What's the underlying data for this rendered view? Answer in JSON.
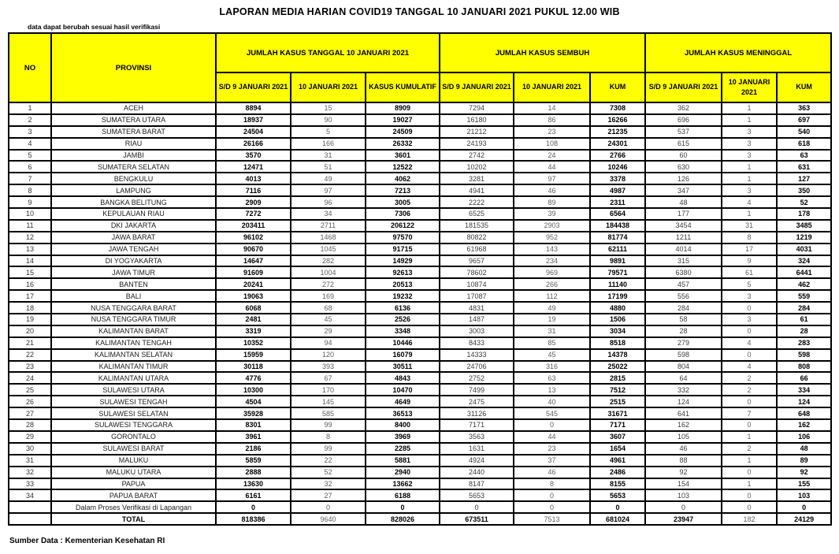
{
  "title": "LAPORAN MEDIA HARIAN COVID19 TANGGAL 10 JANUARI 2021 PUKUL 12.00 WIB",
  "note": "data dapat berubah sesuai hasil verifikasi",
  "source": "Sumber Data : Kementerian Kesehatan RI",
  "colors": {
    "header_bg": "#FFFF00",
    "border": "#000000",
    "muted_value": "#5f5f5f"
  },
  "table": {
    "columns": {
      "no": "NO",
      "province": "PROVINSI",
      "groups": [
        {
          "label": "JUMLAH KASUS TANGGAL 10 JANUARI 2021",
          "sub": [
            "S/D 9 JANUARI 2021",
            "10 JANUARI 2021",
            "KASUS KUMULATIF"
          ]
        },
        {
          "label": "JUMLAH KASUS SEMBUH",
          "sub": [
            "S/D 9 JANUARI 2021",
            "10 JANUARI 2021",
            "KUM"
          ]
        },
        {
          "label": "JUMLAH KASUS MENINGGAL",
          "sub": [
            "S/D 9 JANUARI 2021",
            "10 JANUARI 2021",
            "KUM"
          ]
        }
      ]
    },
    "rows": [
      {
        "no": "1",
        "province": "ACEH",
        "values": [
          "8894",
          "15",
          "8909",
          "7294",
          "14",
          "7308",
          "362",
          "1",
          "363"
        ]
      },
      {
        "no": "2",
        "province": "SUMATERA UTARA",
        "values": [
          "18937",
          "90",
          "19027",
          "16180",
          "86",
          "16266",
          "696",
          "1",
          "697"
        ]
      },
      {
        "no": "3",
        "province": "SUMATERA BARAT",
        "values": [
          "24504",
          "5",
          "24509",
          "21212",
          "23",
          "21235",
          "537",
          "3",
          "540"
        ]
      },
      {
        "no": "4",
        "province": "RIAU",
        "values": [
          "26166",
          "166",
          "26332",
          "24193",
          "108",
          "24301",
          "615",
          "3",
          "618"
        ]
      },
      {
        "no": "5",
        "province": "JAMBI",
        "values": [
          "3570",
          "31",
          "3601",
          "2742",
          "24",
          "2766",
          "60",
          "3",
          "63"
        ]
      },
      {
        "no": "6",
        "province": "SUMATERA SELATAN",
        "values": [
          "12471",
          "51",
          "12522",
          "10202",
          "44",
          "10246",
          "630",
          "1",
          "631"
        ]
      },
      {
        "no": "7",
        "province": "BENGKULU",
        "values": [
          "4013",
          "49",
          "4062",
          "3281",
          "97",
          "3378",
          "126",
          "1",
          "127"
        ]
      },
      {
        "no": "8",
        "province": "LAMPUNG",
        "values": [
          "7116",
          "97",
          "7213",
          "4941",
          "46",
          "4987",
          "347",
          "3",
          "350"
        ]
      },
      {
        "no": "9",
        "province": "BANGKA BELITUNG",
        "values": [
          "2909",
          "96",
          "3005",
          "2222",
          "89",
          "2311",
          "48",
          "4",
          "52"
        ]
      },
      {
        "no": "10",
        "province": "KEPULAUAN RIAU",
        "values": [
          "7272",
          "34",
          "7306",
          "6525",
          "39",
          "6564",
          "177",
          "1",
          "178"
        ]
      },
      {
        "no": "11",
        "province": "DKI JAKARTA",
        "values": [
          "203411",
          "2711",
          "206122",
          "181535",
          "2903",
          "184438",
          "3454",
          "31",
          "3485"
        ]
      },
      {
        "no": "12",
        "province": "JAWA BARAT",
        "values": [
          "96102",
          "1468",
          "97570",
          "80822",
          "952",
          "81774",
          "1211",
          "8",
          "1219"
        ]
      },
      {
        "no": "13",
        "province": "JAWA TENGAH",
        "values": [
          "90670",
          "1045",
          "91715",
          "61968",
          "143",
          "62111",
          "4014",
          "17",
          "4031"
        ]
      },
      {
        "no": "14",
        "province": "DI YOGYAKARTA",
        "values": [
          "14647",
          "282",
          "14929",
          "9657",
          "234",
          "9891",
          "315",
          "9",
          "324"
        ]
      },
      {
        "no": "15",
        "province": "JAWA TIMUR",
        "values": [
          "91609",
          "1004",
          "92613",
          "78602",
          "969",
          "79571",
          "6380",
          "61",
          "6441"
        ]
      },
      {
        "no": "16",
        "province": "BANTEN",
        "values": [
          "20241",
          "272",
          "20513",
          "10874",
          "266",
          "11140",
          "457",
          "5",
          "462"
        ]
      },
      {
        "no": "17",
        "province": "BALI",
        "values": [
          "19063",
          "169",
          "19232",
          "17087",
          "112",
          "17199",
          "556",
          "3",
          "559"
        ]
      },
      {
        "no": "18",
        "province": "NUSA TENGGARA BARAT",
        "values": [
          "6068",
          "68",
          "6136",
          "4831",
          "49",
          "4880",
          "284",
          "0",
          "284"
        ]
      },
      {
        "no": "19",
        "province": "NUSA TENGGARA TIMUR",
        "values": [
          "2481",
          "45",
          "2526",
          "1487",
          "19",
          "1506",
          "58",
          "3",
          "61"
        ]
      },
      {
        "no": "20",
        "province": "KALIMANTAN BARAT",
        "values": [
          "3319",
          "29",
          "3348",
          "3003",
          "31",
          "3034",
          "28",
          "0",
          "28"
        ]
      },
      {
        "no": "21",
        "province": "KALIMANTAN TENGAH",
        "values": [
          "10352",
          "94",
          "10446",
          "8433",
          "85",
          "8518",
          "279",
          "4",
          "283"
        ]
      },
      {
        "no": "22",
        "province": "KALIMANTAN SELATAN",
        "values": [
          "15959",
          "120",
          "16079",
          "14333",
          "45",
          "14378",
          "598",
          "0",
          "598"
        ]
      },
      {
        "no": "23",
        "province": "KALIMANTAN TIMUR",
        "values": [
          "30118",
          "393",
          "30511",
          "24706",
          "316",
          "25022",
          "804",
          "4",
          "808"
        ]
      },
      {
        "no": "24",
        "province": "KALIMANTAN UTARA",
        "values": [
          "4776",
          "67",
          "4843",
          "2752",
          "63",
          "2815",
          "64",
          "2",
          "66"
        ]
      },
      {
        "no": "25",
        "province": "SULAWESI UTARA",
        "values": [
          "10300",
          "170",
          "10470",
          "7499",
          "13",
          "7512",
          "332",
          "2",
          "334"
        ]
      },
      {
        "no": "26",
        "province": "SULAWESI TENGAH",
        "values": [
          "4504",
          "145",
          "4649",
          "2475",
          "40",
          "2515",
          "124",
          "0",
          "124"
        ]
      },
      {
        "no": "27",
        "province": "SULAWESI SELATAN",
        "values": [
          "35928",
          "585",
          "36513",
          "31126",
          "545",
          "31671",
          "641",
          "7",
          "648"
        ]
      },
      {
        "no": "28",
        "province": "SULAWESI TENGGARA",
        "values": [
          "8301",
          "99",
          "8400",
          "7171",
          "0",
          "7171",
          "162",
          "0",
          "162"
        ]
      },
      {
        "no": "29",
        "province": "GORONTALO",
        "values": [
          "3961",
          "8",
          "3969",
          "3563",
          "44",
          "3607",
          "105",
          "1",
          "106"
        ]
      },
      {
        "no": "30",
        "province": "SULAWESI BARAT",
        "values": [
          "2186",
          "99",
          "2285",
          "1631",
          "23",
          "1654",
          "46",
          "2",
          "48"
        ]
      },
      {
        "no": "31",
        "province": "MALUKU",
        "values": [
          "5859",
          "22",
          "5881",
          "4924",
          "37",
          "4961",
          "88",
          "1",
          "89"
        ]
      },
      {
        "no": "32",
        "province": "MALUKU UTARA",
        "values": [
          "2888",
          "52",
          "2940",
          "2440",
          "46",
          "2486",
          "92",
          "0",
          "92"
        ]
      },
      {
        "no": "33",
        "province": "PAPUA",
        "values": [
          "13630",
          "32",
          "13662",
          "8147",
          "8",
          "8155",
          "154",
          "1",
          "155"
        ]
      },
      {
        "no": "34",
        "province": "PAPUA BARAT",
        "values": [
          "6161",
          "27",
          "6188",
          "5653",
          "0",
          "5653",
          "103",
          "0",
          "103"
        ]
      }
    ],
    "verification_row": {
      "no": "",
      "province": "Dalam Proses Verifikasi di Lapangan",
      "values": [
        "0",
        "0",
        "0",
        "0",
        "0",
        "0",
        "0",
        "0",
        "0"
      ]
    },
    "total_row": {
      "no": "",
      "province": "TOTAL",
      "values": [
        "818386",
        "9640",
        "828026",
        "673511",
        "7513",
        "681024",
        "23947",
        "182",
        "24129"
      ]
    }
  }
}
